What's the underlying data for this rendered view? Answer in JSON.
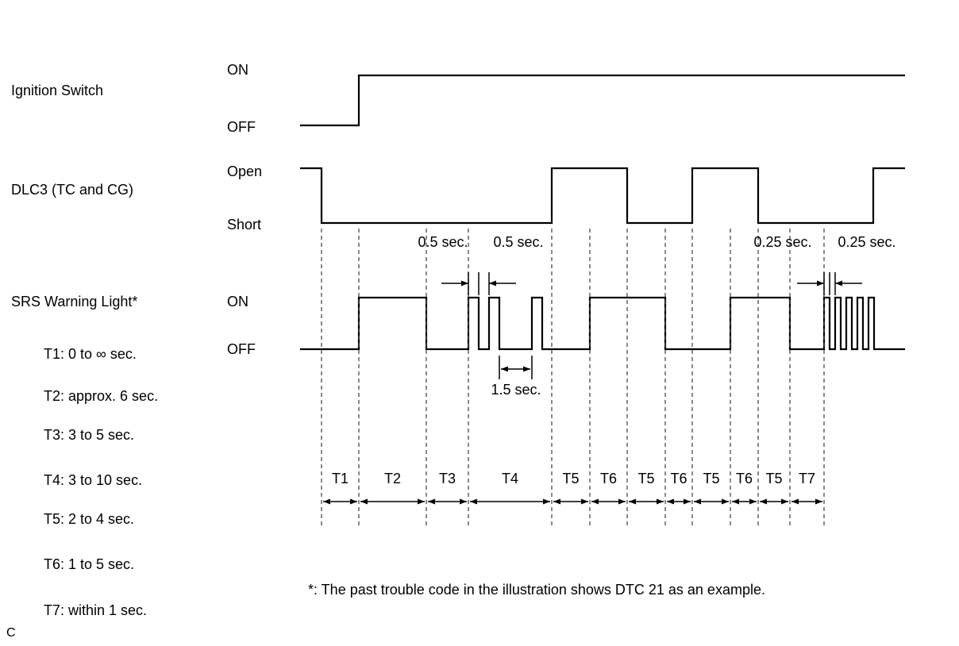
{
  "page": {
    "corner_label": "C",
    "background": "#ffffff",
    "line_color": "#000000"
  },
  "footnote": "*: The past trouble code in the illustration shows DTC 21 as an example.",
  "signals": [
    {
      "name": "Ignition Switch",
      "high_label": "ON",
      "low_label": "OFF",
      "segments": [
        [
          378,
          452,
          "OFF"
        ],
        [
          452,
          1140,
          "ON"
        ]
      ]
    },
    {
      "name": "DLC3 (TC and CG)",
      "high_label": "Open",
      "low_label": "Short",
      "segments": [
        [
          378,
          405,
          "Open"
        ],
        [
          405,
          695,
          "Short"
        ],
        [
          695,
          790,
          "Open"
        ],
        [
          790,
          872,
          "Short"
        ],
        [
          872,
          955,
          "Open"
        ],
        [
          955,
          1100,
          "Short"
        ],
        [
          1100,
          1140,
          "Open"
        ]
      ]
    },
    {
      "name": "SRS Warning Light*",
      "high_label": "ON",
      "low_label": "OFF",
      "segments": [
        [
          378,
          452,
          "OFF"
        ],
        [
          452,
          537,
          "ON"
        ],
        [
          537,
          590,
          "OFF"
        ],
        [
          590,
          603,
          "ON"
        ],
        [
          603,
          616,
          "OFF"
        ],
        [
          616,
          629,
          "ON"
        ],
        [
          629,
          670,
          "OFF"
        ],
        [
          670,
          683,
          "ON"
        ],
        [
          683,
          743,
          "OFF"
        ],
        [
          743,
          838,
          "ON"
        ],
        [
          838,
          920,
          "OFF"
        ],
        [
          920,
          995,
          "ON"
        ],
        [
          995,
          1038,
          "OFF"
        ],
        [
          1038,
          1045,
          "ON"
        ],
        [
          1045,
          1052,
          "OFF"
        ],
        [
          1052,
          1059,
          "ON"
        ],
        [
          1059,
          1066,
          "OFF"
        ],
        [
          1066,
          1073,
          "ON"
        ],
        [
          1073,
          1080,
          "OFF"
        ],
        [
          1080,
          1087,
          "ON"
        ],
        [
          1087,
          1094,
          "OFF"
        ],
        [
          1094,
          1101,
          "ON"
        ],
        [
          1101,
          1140,
          "OFF"
        ]
      ]
    }
  ],
  "intervals": [
    {
      "label": "T1",
      "from": 405,
      "to": 452
    },
    {
      "label": "T2",
      "from": 452,
      "to": 537
    },
    {
      "label": "T3",
      "from": 537,
      "to": 590
    },
    {
      "label": "T4",
      "from": 590,
      "to": 695
    },
    {
      "label": "T5",
      "from": 695,
      "to": 743
    },
    {
      "label": "T6",
      "from": 743,
      "to": 790
    },
    {
      "label": "T5",
      "from": 790,
      "to": 838
    },
    {
      "label": "T6",
      "from": 838,
      "to": 872
    },
    {
      "label": "T5",
      "from": 872,
      "to": 920
    },
    {
      "label": "T6",
      "from": 920,
      "to": 955
    },
    {
      "label": "T5",
      "from": 955,
      "to": 995
    },
    {
      "label": "T7",
      "from": 995,
      "to": 1038
    }
  ],
  "legend": [
    "T1: 0 to ∞ sec.",
    "T2: approx. 6 sec.",
    "T3: 3 to 5 sec.",
    "T4: 3 to 10 sec.",
    "T5: 2 to 4 sec.",
    "T6: 1 to 5 sec.",
    "T7: within 1 sec."
  ],
  "annotations": {
    "half_a": "0.5 sec.",
    "half_b": "0.5 sec.",
    "gap_15": "1.5 sec.",
    "quarter_a": "0.25 sec.",
    "quarter_b": "0.25 sec."
  }
}
